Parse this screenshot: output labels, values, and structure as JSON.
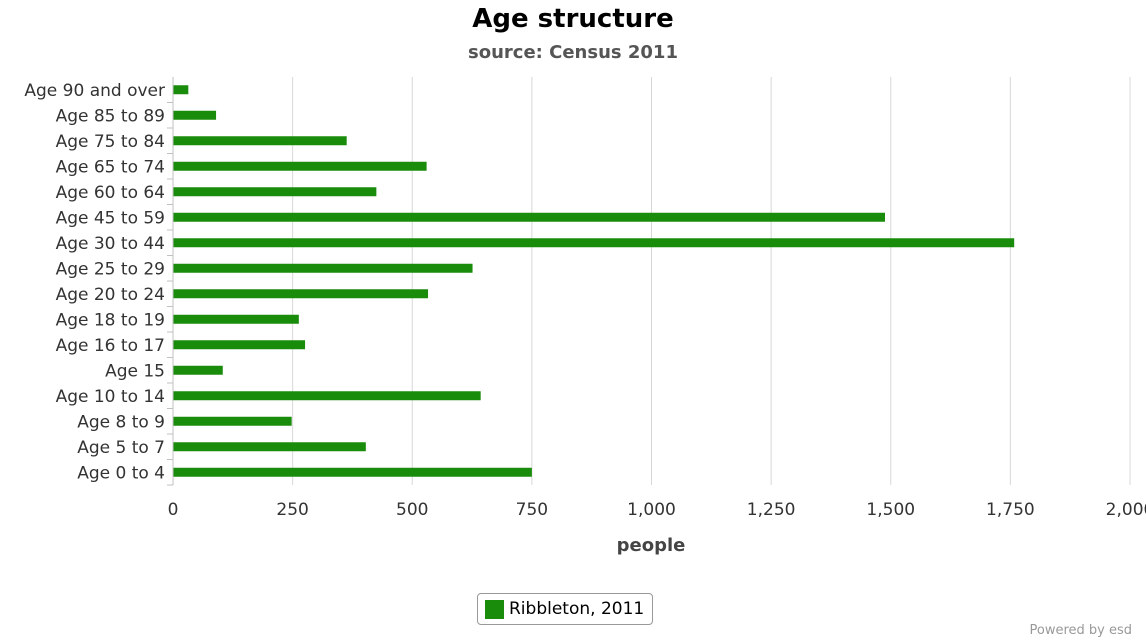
{
  "chart_data": {
    "type": "bar",
    "orientation": "horizontal",
    "title": "Age structure",
    "subtitle": "source: Census 2011",
    "xlabel": "people",
    "ylabel": "",
    "xlim": [
      0,
      2000
    ],
    "x_ticks": [
      0,
      250,
      500,
      750,
      1000,
      1250,
      1500,
      1750,
      2000
    ],
    "x_tick_labels": [
      "0",
      "250",
      "500",
      "750",
      "1,000",
      "1,250",
      "1,500",
      "1,750",
      "2,000"
    ],
    "grid": "vertical",
    "legend_position": "bottom-center",
    "categories": [
      "Age 90 and over",
      "Age 85 to 89",
      "Age 75 to 84",
      "Age 65 to 74",
      "Age 60 to 64",
      "Age 45 to 59",
      "Age 30 to 44",
      "Age 25 to 29",
      "Age 20 to 24",
      "Age 18 to 19",
      "Age 16 to 17",
      "Age 15",
      "Age 10 to 14",
      "Age 8 to 9",
      "Age 5 to 7",
      "Age 0 to 4"
    ],
    "series": [
      {
        "name": "Ribbleton, 2011",
        "color": "#1a8c0c",
        "values": [
          32,
          90,
          363,
          530,
          425,
          1488,
          1758,
          626,
          533,
          263,
          276,
          104,
          643,
          248,
          403,
          750
        ]
      }
    ]
  },
  "footer": {
    "credit": "Powered by esd"
  }
}
